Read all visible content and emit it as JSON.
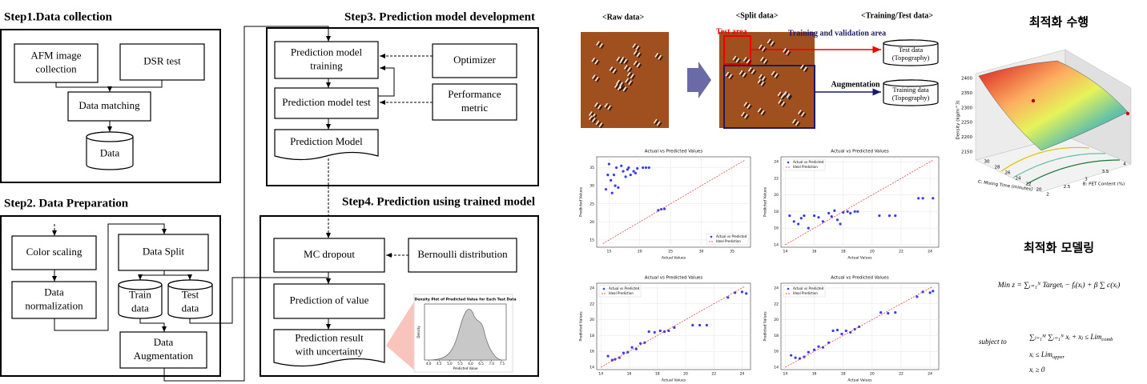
{
  "steps": [
    {
      "title": "Step1.Data collection",
      "nodes": [
        {
          "label": [
            "AFM image",
            "collection"
          ]
        },
        {
          "label": [
            "DSR test"
          ]
        },
        {
          "label": [
            "Data matching"
          ]
        },
        {
          "label": [
            "Data"
          ]
        }
      ]
    },
    {
      "title": "Step2. Data Preparation",
      "nodes": [
        {
          "label": [
            "Color scaling"
          ]
        },
        {
          "label": [
            "Data Split"
          ]
        },
        {
          "label": [
            "Data",
            "normalization"
          ]
        },
        {
          "label": [
            "Train",
            "data"
          ]
        },
        {
          "label": [
            "Test",
            "data"
          ]
        },
        {
          "label": [
            "Data",
            "Augmentation"
          ]
        }
      ]
    },
    {
      "title": "Step3. Prediction model development",
      "nodes": [
        {
          "label": [
            "Prediction model",
            "training"
          ]
        },
        {
          "label": [
            "Prediction model test"
          ]
        },
        {
          "label": [
            "Prediction Model"
          ]
        },
        {
          "label": [
            "Optimizer"
          ]
        },
        {
          "label": [
            "Performance",
            "metric"
          ]
        }
      ]
    },
    {
      "title": "Step4. Prediction using trained model",
      "nodes": [
        {
          "label": [
            "MC dropout"
          ]
        },
        {
          "label": [
            "Bernoulli distribution"
          ]
        },
        {
          "label": [
            "Prediction of value"
          ]
        },
        {
          "label": [
            "Prediction result",
            "with uncertainty"
          ]
        }
      ]
    }
  ],
  "density_inset": {
    "title": "Density Plot of Predicted Value for Each Test Data",
    "x_label": "Predicted Value",
    "y_label": "Density",
    "xlim": [
      3.8,
      7.7
    ],
    "xticks": [
      {
        "value": 4,
        "label": "4.0"
      },
      4.5,
      {
        "value": 5,
        "label": "5.0"
      },
      5.5,
      {
        "value": 6,
        "label": "6.0"
      },
      6.5,
      {
        "value": 7,
        "label": "7.0"
      },
      7.5
    ]
  },
  "split_figure": {
    "raw_label": "<Raw data>",
    "split_label": "<Split data>",
    "tt_label": "<Training/Test data>",
    "test_area": "Test area",
    "train_area": "Training and validation area",
    "augmentation": "Augmentation",
    "test_db": [
      "Test data",
      "(Topography)"
    ],
    "train_db": [
      "Training data",
      "(Topography)"
    ]
  },
  "chart_data": [
    {
      "type": "scatter",
      "title": "Actual vs Predicted Values",
      "x_label": "Actual Values",
      "y_label": "Predicted Values",
      "xlim": [
        13,
        38
      ],
      "ylim": [
        13,
        38
      ],
      "xticks": [
        15,
        20,
        25,
        30,
        35
      ],
      "yticks": [
        15,
        20,
        25,
        30,
        35
      ],
      "grid": true,
      "legend": "lower right",
      "series": [
        {
          "name": "Actual vs Predicted",
          "color": "#3a3aee",
          "x": [
            14.5,
            14.8,
            15,
            15.3,
            15.5,
            15.8,
            16,
            16.2,
            16.5,
            17,
            17.3,
            17.7,
            18,
            18.2,
            18.5,
            19,
            19.3,
            19.6,
            20.5,
            21,
            21.5,
            23,
            23.5,
            24
          ],
          "values": [
            29,
            33,
            36,
            31.5,
            28,
            33,
            30,
            35,
            29.5,
            35.5,
            34,
            32.5,
            34.5,
            35,
            33,
            34,
            33.5,
            34.8,
            35,
            35,
            35,
            23.2,
            23.5,
            23.6
          ]
        },
        {
          "name": "Ideal Prediction",
          "color": "#e03030",
          "type": "line",
          "x": [
            14,
            37
          ],
          "values": [
            14,
            37
          ]
        }
      ]
    },
    {
      "type": "scatter",
      "title": "Actual vs Predicted Values",
      "x_label": "Actual Values",
      "y_label": "Predicted Values",
      "xlim": [
        13.7,
        24.6
      ],
      "ylim": [
        13.7,
        24.6
      ],
      "xticks": [
        14,
        16,
        18,
        20,
        22,
        24
      ],
      "yticks": [
        14,
        16,
        18,
        20,
        22,
        24
      ],
      "grid": true,
      "legend": "upper left",
      "series": [
        {
          "name": "Actual vs Predicted",
          "color": "#3a3aee",
          "x": [
            14.3,
            14.6,
            14.9,
            15.1,
            15.3,
            15.6,
            16,
            16.3,
            16.6,
            17,
            17.2,
            17.4,
            17.6,
            17.8,
            18,
            18.3,
            18.5,
            18.8,
            19,
            20.5,
            21.2,
            21.6,
            23.2,
            23.5,
            24.2
          ],
          "values": [
            17.5,
            16.8,
            16.5,
            17.2,
            17.5,
            16,
            17.5,
            17.3,
            16.8,
            17.8,
            17.4,
            18.1,
            17,
            16.5,
            17.9,
            18,
            17.8,
            18,
            18,
            17.5,
            17.5,
            17.5,
            19.6,
            19.6,
            19.6
          ]
        },
        {
          "name": "Ideal Prediction",
          "color": "#e03030",
          "type": "line",
          "x": [
            14,
            24.2
          ],
          "values": [
            14,
            24.2
          ]
        }
      ]
    },
    {
      "type": "scatter",
      "title": "Actual vs Predicted Values",
      "x_label": "Actual Values",
      "y_label": "Predicted Values",
      "xlim": [
        13.7,
        24.6
      ],
      "ylim": [
        13.7,
        24.6
      ],
      "xticks": [
        14,
        16,
        18,
        20,
        22,
        24
      ],
      "yticks": [
        14,
        16,
        18,
        20,
        22,
        24
      ],
      "grid": true,
      "legend": "upper left",
      "series": [
        {
          "name": "Actual vs Predicted",
          "color": "#3a3aee",
          "x": [
            14.5,
            14.8,
            15,
            15.3,
            15.6,
            15.9,
            16.2,
            16.5,
            16.8,
            17.1,
            17.4,
            17.8,
            18.2,
            18.5,
            18.8,
            19.2,
            20.5,
            21,
            21.5,
            23,
            23.5,
            24,
            24.3
          ],
          "values": [
            15.4,
            14.9,
            15,
            15.2,
            15.8,
            15.9,
            16.5,
            16.3,
            17,
            17.1,
            18.5,
            18.4,
            18.6,
            18.5,
            18.6,
            19,
            19.3,
            19.3,
            19.3,
            22.8,
            23.4,
            23.5,
            23.3
          ]
        },
        {
          "name": "Ideal Prediction",
          "color": "#e03030",
          "type": "line",
          "x": [
            14,
            24.2
          ],
          "values": [
            14,
            24.2
          ]
        }
      ]
    },
    {
      "type": "scatter",
      "title": "Actual vs Predicted Values",
      "x_label": "Actual Values",
      "y_label": "Predicted Values",
      "xlim": [
        13.7,
        24.6
      ],
      "ylim": [
        13.7,
        24.6
      ],
      "xticks": [
        14,
        16,
        18,
        20,
        22,
        24
      ],
      "yticks": [
        14,
        16,
        18,
        20,
        22,
        24
      ],
      "grid": true,
      "legend": "upper left",
      "series": [
        {
          "name": "Actual vs Predicted",
          "color": "#3a3aee",
          "x": [
            14.4,
            14.7,
            15,
            15.3,
            15.6,
            16,
            16.3,
            16.6,
            17,
            17.3,
            17.6,
            17.9,
            18.2,
            18.5,
            18.8,
            19.1,
            20.6,
            21.1,
            21.6,
            23.1,
            23.5,
            24,
            24.2
          ],
          "values": [
            15.5,
            15.2,
            15.1,
            15.3,
            15.9,
            16.2,
            16.6,
            16.5,
            17.1,
            18.6,
            18.7,
            18.2,
            18.6,
            18.4,
            18.8,
            19.1,
            20.9,
            20.8,
            20.9,
            22.9,
            23.5,
            23.4,
            23.6
          ]
        },
        {
          "name": "Ideal Prediction",
          "color": "#e03030",
          "type": "line",
          "x": [
            14,
            24.2
          ],
          "values": [
            14,
            24.2
          ]
        }
      ]
    }
  ],
  "optimization": {
    "title": "최적화 수행",
    "z_label": "Density (kg/m^3)",
    "x_label": "C: Mixing Time (minutes)",
    "y_label": "B: PET Content (%)",
    "zticks": [
      2150,
      2200,
      2250,
      2300,
      2350,
      2400
    ],
    "xticks": [
      30,
      28,
      26,
      24,
      22,
      20
    ],
    "yticks": [
      2,
      2.5,
      3,
      3.5,
      4
    ]
  },
  "modeling": {
    "title": "최적화 모델링",
    "objective": "Min z = ∑ᵢ₌₁ᴺ Targetᵢ − fᵢ(xᵢ) + β ∑ c(xᵢ)",
    "subject_to": "subject to",
    "constraints": [
      {
        "text": "∑ⱼ₌₁ᴹ ∑ᵢ₌₁ᴺ xᵢ + xⱼ ≤ Lim",
        "sub": "comb"
      },
      {
        "text": "xᵢ ≤ Lim",
        "sub": "upper"
      },
      {
        "text": "xᵢ ≥ 0"
      }
    ]
  }
}
